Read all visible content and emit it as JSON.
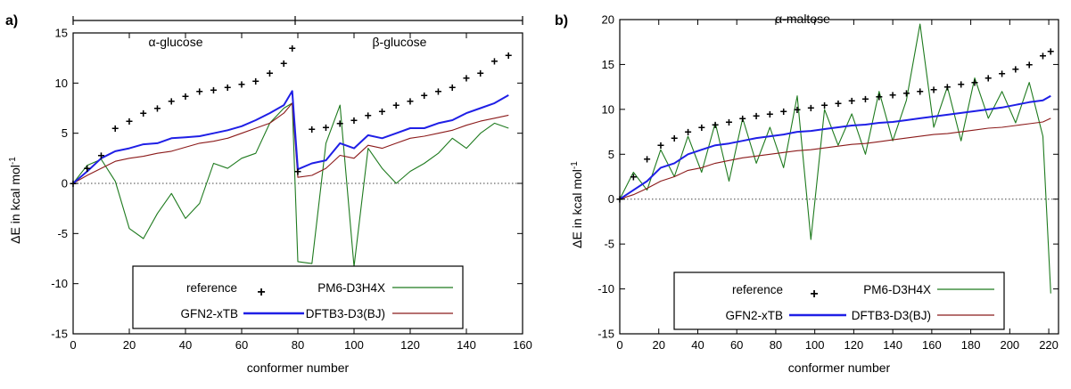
{
  "panels": [
    {
      "panel_label": "a)",
      "xlabel": "conformer number",
      "ylabel": "ΔE in kcal mol",
      "ylabel_sup": "-1",
      "xlim": [
        0,
        160
      ],
      "ylim": [
        -15,
        15
      ],
      "xticks": [
        "0",
        "20",
        "40",
        "60",
        "80",
        "100",
        "120",
        "140",
        "160"
      ],
      "yticks": [
        "-15",
        "-10",
        "-5",
        "0",
        "5",
        "10",
        "15"
      ],
      "bracket_labels": [
        "α-glucose",
        "β-glucose"
      ],
      "bracket_bounds": [
        0,
        79,
        157
      ]
    },
    {
      "panel_label": "b)",
      "xlabel": "conformer number",
      "ylabel": "ΔE in kcal mol",
      "ylabel_sup": "-1",
      "xlim": [
        0,
        225
      ],
      "ylim": [
        -15,
        20
      ],
      "xticks": [
        "0",
        "20",
        "40",
        "60",
        "80",
        "100",
        "120",
        "140",
        "160",
        "180",
        "200",
        "220"
      ],
      "yticks": [
        "-15",
        "-10",
        "-5",
        "0",
        "5",
        "10",
        "15",
        "20"
      ],
      "annotation": "α-maltose"
    }
  ],
  "legend": {
    "entries": [
      {
        "label": "reference",
        "style": "marker"
      },
      {
        "label": "PM6-D3H4X",
        "style": "line"
      },
      {
        "label": "GFN2-xTB",
        "style": "line-bold"
      },
      {
        "label": "DFTB3-D3(BJ)",
        "style": "line"
      }
    ]
  },
  "colors": {
    "reference": "#000000",
    "PM6-D3H4X": "#1e7a1e",
    "GFN2-xTB": "#1f1fe6",
    "DFTB3-D3(BJ)": "#8b1a1a",
    "zero_line": "#444444"
  },
  "chart_data": [
    {
      "type": "line",
      "title": "",
      "xlabel": "conformer number",
      "ylabel": "ΔE in kcal mol-1",
      "xlim": [
        0,
        160
      ],
      "ylim": [
        -15,
        15
      ],
      "grid": false,
      "legend_position": "bottom-right",
      "x_samples": [
        0,
        5,
        10,
        15,
        20,
        25,
        30,
        35,
        40,
        45,
        50,
        55,
        60,
        65,
        70,
        75,
        78,
        80,
        85,
        90,
        95,
        100,
        105,
        110,
        115,
        120,
        125,
        130,
        135,
        140,
        145,
        150,
        155
      ],
      "series": [
        {
          "name": "reference",
          "values": [
            0.0,
            1.5,
            2.8,
            5.5,
            6.2,
            7.0,
            7.5,
            8.2,
            8.7,
            9.2,
            9.3,
            9.6,
            9.9,
            10.2,
            11.0,
            12.0,
            13.5,
            1.2,
            5.4,
            5.6,
            6.0,
            6.3,
            6.8,
            7.2,
            7.8,
            8.2,
            8.8,
            9.2,
            9.6,
            10.5,
            11.0,
            12.2,
            12.8
          ]
        },
        {
          "name": "PM6-D3H4X",
          "values": [
            0.0,
            1.8,
            2.4,
            0.2,
            -4.5,
            -5.5,
            -3.0,
            -1.0,
            -3.5,
            -2.0,
            2.0,
            1.5,
            2.5,
            3.0,
            6.0,
            7.5,
            8.0,
            -7.8,
            -8.0,
            4.0,
            7.8,
            -8.3,
            3.5,
            1.5,
            0.0,
            1.2,
            2.0,
            3.0,
            4.5,
            3.5,
            5.0,
            6.0,
            5.5
          ]
        },
        {
          "name": "GFN2-xTB",
          "values": [
            0.0,
            1.2,
            2.5,
            3.2,
            3.5,
            3.9,
            4.0,
            4.5,
            4.6,
            4.7,
            5.0,
            5.3,
            5.7,
            6.3,
            7.0,
            7.8,
            9.2,
            1.4,
            2.0,
            2.3,
            4.0,
            3.5,
            4.8,
            4.5,
            5.0,
            5.5,
            5.5,
            6.0,
            6.3,
            7.0,
            7.5,
            8.0,
            8.8
          ]
        },
        {
          "name": "DFTB3-D3(BJ)",
          "values": [
            0.0,
            0.8,
            1.5,
            2.2,
            2.5,
            2.7,
            3.0,
            3.2,
            3.6,
            4.0,
            4.2,
            4.5,
            5.0,
            5.5,
            6.0,
            7.0,
            8.0,
            0.6,
            0.8,
            1.5,
            2.8,
            2.5,
            3.8,
            3.5,
            4.0,
            4.5,
            4.7,
            5.0,
            5.3,
            5.8,
            6.2,
            6.5,
            6.8
          ]
        }
      ]
    },
    {
      "type": "line",
      "title": "",
      "xlabel": "conformer number",
      "ylabel": "ΔE in kcal mol-1",
      "xlim": [
        0,
        225
      ],
      "ylim": [
        -15,
        20
      ],
      "grid": false,
      "legend_position": "bottom-right",
      "x_samples": [
        0,
        7,
        14,
        21,
        28,
        35,
        42,
        49,
        56,
        63,
        70,
        77,
        84,
        91,
        98,
        105,
        112,
        119,
        126,
        133,
        140,
        147,
        154,
        161,
        168,
        175,
        182,
        189,
        196,
        203,
        210,
        217,
        221
      ],
      "series": [
        {
          "name": "reference",
          "values": [
            0.0,
            2.5,
            4.5,
            6.0,
            6.8,
            7.5,
            8.0,
            8.3,
            8.6,
            9.0,
            9.3,
            9.5,
            9.8,
            10.0,
            10.2,
            10.5,
            10.7,
            11.0,
            11.2,
            11.4,
            11.6,
            11.8,
            12.0,
            12.2,
            12.5,
            12.8,
            13.0,
            13.5,
            14.0,
            14.5,
            15.0,
            16.0,
            16.5
          ]
        },
        {
          "name": "PM6-D3H4X",
          "values": [
            0.0,
            3.0,
            1.0,
            5.5,
            2.5,
            7.0,
            3.0,
            8.5,
            2.0,
            9.0,
            4.0,
            8.0,
            3.5,
            11.5,
            -4.5,
            10.0,
            6.0,
            9.5,
            5.0,
            12.0,
            6.5,
            11.0,
            19.5,
            8.0,
            12.5,
            6.5,
            13.5,
            9.0,
            12.0,
            8.5,
            13.0,
            7.0,
            -10.5
          ]
        },
        {
          "name": "GFN2-xTB",
          "values": [
            0.0,
            1.0,
            2.0,
            3.5,
            4.0,
            5.0,
            5.5,
            6.0,
            6.2,
            6.5,
            6.8,
            7.0,
            7.2,
            7.5,
            7.6,
            7.8,
            8.0,
            8.2,
            8.3,
            8.5,
            8.6,
            8.8,
            9.0,
            9.2,
            9.4,
            9.6,
            9.8,
            10.0,
            10.2,
            10.5,
            10.8,
            11.0,
            11.5
          ]
        },
        {
          "name": "DFTB3-D3(BJ)",
          "values": [
            0.0,
            0.5,
            1.2,
            2.0,
            2.5,
            3.2,
            3.5,
            4.0,
            4.3,
            4.6,
            4.8,
            5.0,
            5.2,
            5.4,
            5.5,
            5.7,
            5.9,
            6.1,
            6.2,
            6.4,
            6.6,
            6.8,
            7.0,
            7.2,
            7.3,
            7.5,
            7.7,
            7.9,
            8.0,
            8.2,
            8.4,
            8.6,
            9.0
          ]
        }
      ]
    }
  ]
}
